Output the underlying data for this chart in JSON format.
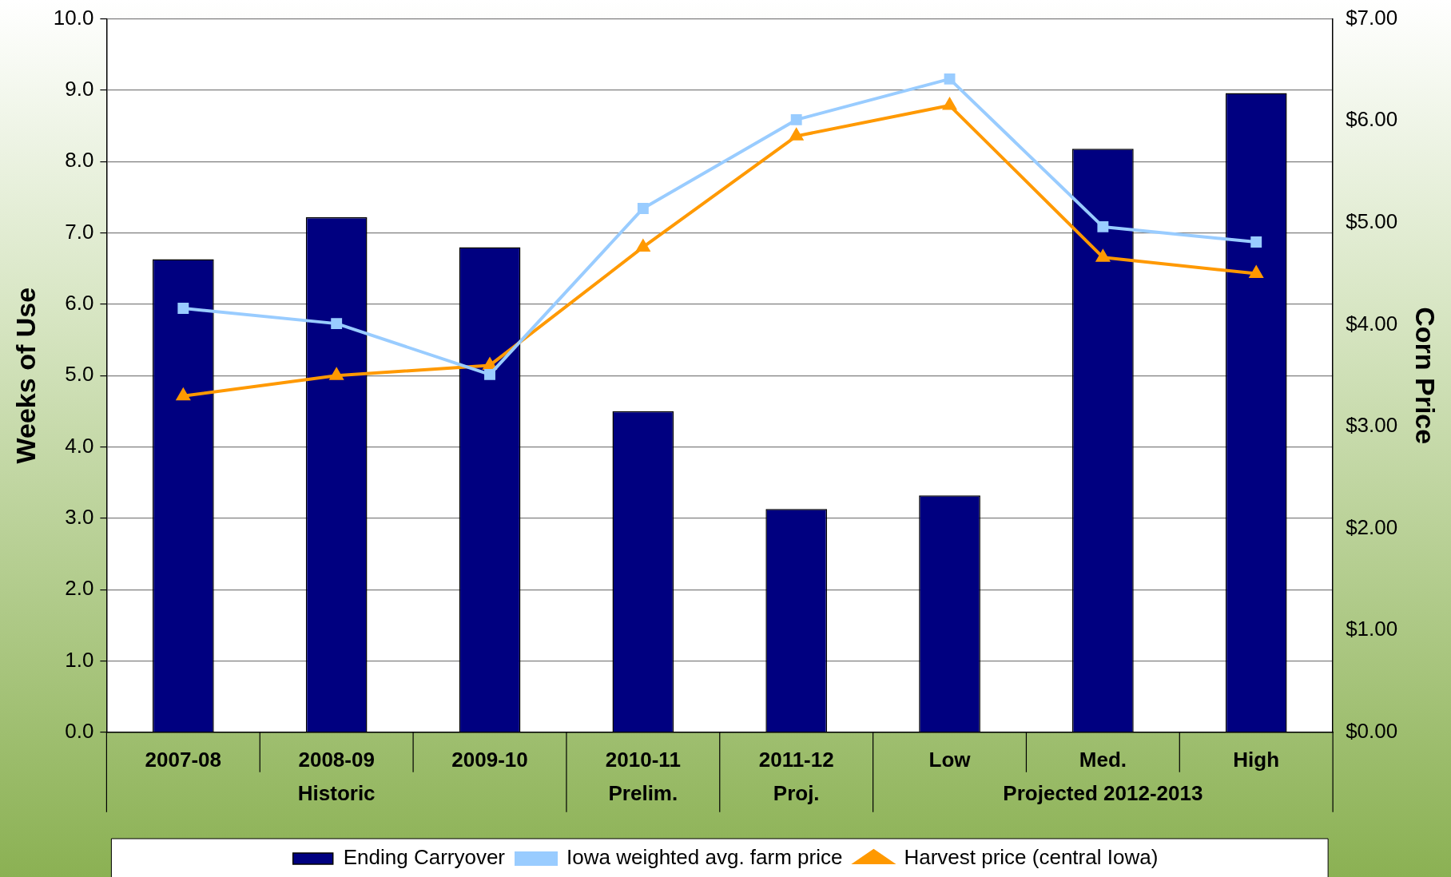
{
  "chart_data": {
    "type": "bar",
    "ylabel": "Weeks of Use",
    "y2label": "Corn Price",
    "categories": [
      "2007-08",
      "2008-09",
      "2009-10",
      "2010-11",
      "2011-12",
      "Low",
      "Med.",
      "High"
    ],
    "series": [
      {
        "name": "Ending Carryover",
        "type": "bar",
        "color": "#000080",
        "values": [
          6.63,
          7.22,
          6.8,
          4.5,
          3.13,
          3.32,
          8.18,
          8.96
        ]
      },
      {
        "name": "Iowa weighted avg. farm price",
        "type": "line",
        "axis": "y2",
        "color": "#99ccff",
        "marker": "square",
        "values": [
          4.16,
          4.01,
          3.51,
          5.14,
          6.01,
          6.41,
          4.96,
          4.81
        ]
      },
      {
        "name": "Harvest price (central Iowa)",
        "type": "line",
        "axis": "y2",
        "color": "#ff9900",
        "marker": "triangle",
        "values": [
          3.3,
          3.5,
          3.6,
          4.76,
          5.85,
          6.15,
          4.66,
          4.5
        ]
      }
    ],
    "ylim": [
      0,
      10
    ],
    "yticks": [
      {
        "value": 0,
        "label": "0.0"
      },
      {
        "value": 1,
        "label": "1.0"
      },
      {
        "value": 2,
        "label": "2.0"
      },
      {
        "value": 3,
        "label": "3.0"
      },
      {
        "value": 4,
        "label": "4.0"
      },
      {
        "value": 5,
        "label": "5.0"
      },
      {
        "value": 6,
        "label": "6.0"
      },
      {
        "value": 7,
        "label": "7.0"
      },
      {
        "value": 8,
        "label": "8.0"
      },
      {
        "value": 9,
        "label": "9.0"
      },
      {
        "value": 10,
        "label": "10.0"
      }
    ],
    "y2lim": [
      0,
      7
    ],
    "y2ticks": [
      {
        "value": 0,
        "label": "$0.00"
      },
      {
        "value": 1,
        "label": "$1.00"
      },
      {
        "value": 2,
        "label": "$2.00"
      },
      {
        "value": 3,
        "label": "$3.00"
      },
      {
        "value": 4,
        "label": "$4.00"
      },
      {
        "value": 5,
        "label": "$5.00"
      },
      {
        "value": 6,
        "label": "$6.00"
      },
      {
        "value": 7,
        "label": "$7.00"
      }
    ],
    "annotations": [
      "Historic",
      "Prelim.",
      "Proj.",
      "Projected 2012-2013"
    ],
    "grid": "y",
    "legend": "bottom",
    "line_style": "solid"
  }
}
